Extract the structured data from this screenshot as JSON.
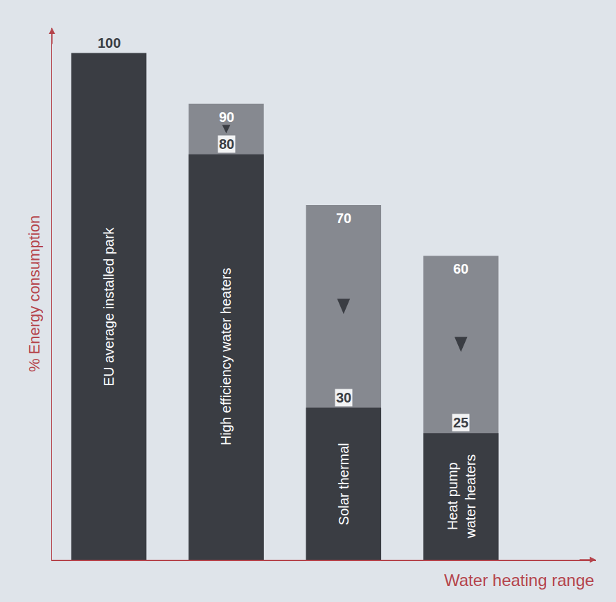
{
  "chart_data": {
    "type": "bar",
    "y_label": "% Energy consumption",
    "x_label": "Water heating range",
    "categories": [
      "EU average installed park",
      "High efficiency water heaters",
      "Solar thermal",
      "Heat pump water heaters"
    ],
    "values": [
      100,
      90,
      70,
      60
    ],
    "range_low": [
      null,
      80,
      30,
      25
    ],
    "colors": [
      "#3a3d43",
      "#868990",
      "#868990",
      "#868990"
    ],
    "color": "#3a3d43",
    "ylim": [
      0,
      105
    ],
    "grid": false,
    "tick_labels": false,
    "data_labels": true
  }
}
